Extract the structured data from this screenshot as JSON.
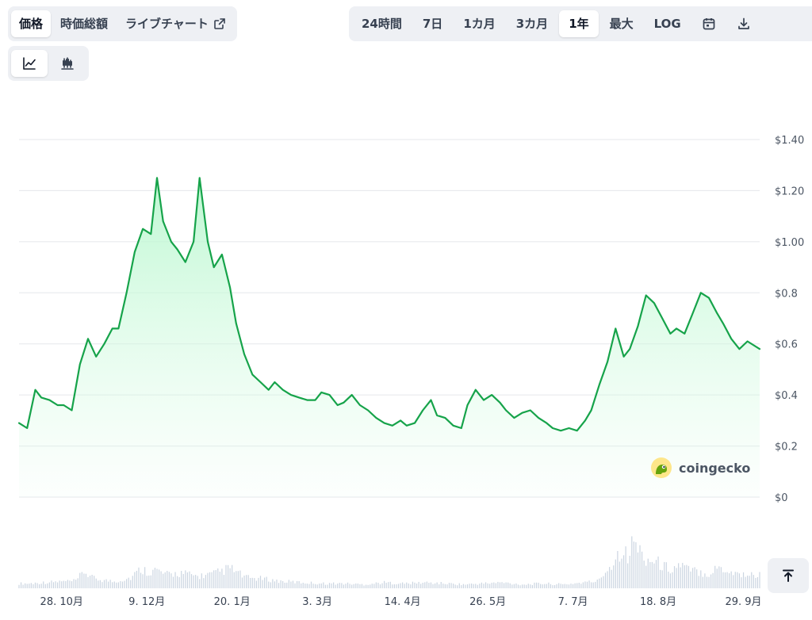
{
  "tabs_left": [
    {
      "label": "価格",
      "active": true
    },
    {
      "label": "時価総額",
      "active": false
    },
    {
      "label": "ライブチャート",
      "active": false,
      "icon": "external-link-icon"
    }
  ],
  "tabs_right": [
    {
      "label": "24時間",
      "active": false
    },
    {
      "label": "7日",
      "active": false
    },
    {
      "label": "1カ月",
      "active": false
    },
    {
      "label": "3カ月",
      "active": false
    },
    {
      "label": "1年",
      "active": true
    },
    {
      "label": "最大",
      "active": false
    },
    {
      "label": "LOG",
      "active": false
    }
  ],
  "toolbar_icons": [
    "calendar-icon",
    "download-icon"
  ],
  "view_toggle": [
    {
      "icon": "line-chart-icon",
      "active": true
    },
    {
      "icon": "candlestick-icon",
      "active": false
    }
  ],
  "watermark": {
    "text": "coingecko",
    "icon": "gecko-logo-icon"
  },
  "colors": {
    "line": "#16a34a",
    "fill_top": "#bbf7d0",
    "volume": "#cbd5e1",
    "grid": "#e5e7eb"
  },
  "chart_data": {
    "type": "area",
    "title": "",
    "xlabel": "",
    "ylabel": "",
    "y_ticks": [
      "$0",
      "$0.2",
      "$0.4",
      "$0.6",
      "$0.8",
      "$1.00",
      "$1.20",
      "$1.40"
    ],
    "y_tick_values": [
      0,
      0.2,
      0.4,
      0.6,
      0.8,
      1.0,
      1.2,
      1.4
    ],
    "ylim": [
      0,
      1.4
    ],
    "x_ticks": [
      "28. 10月",
      "9. 12月",
      "20. 1月",
      "3. 3月",
      "14. 4月",
      "26. 5月",
      "7. 7月",
      "18. 8月",
      "29. 9月"
    ],
    "x_tick_days": [
      21,
      63,
      105,
      147,
      189,
      231,
      273,
      315,
      357
    ],
    "xlim_days": [
      0,
      365
    ],
    "grid": true,
    "legend": "none",
    "series": [
      {
        "name": "",
        "x_days": [
          0,
          4,
          8,
          11,
          15,
          19,
          22,
          26,
          30,
          34,
          38,
          42,
          46,
          49,
          53,
          57,
          61,
          65,
          68,
          71,
          75,
          78,
          82,
          86,
          89,
          93,
          96,
          100,
          104,
          107,
          111,
          115,
          119,
          123,
          126,
          130,
          134,
          138,
          142,
          146,
          149,
          153,
          157,
          160,
          164,
          168,
          172,
          176,
          180,
          184,
          188,
          191,
          195,
          199,
          203,
          206,
          210,
          214,
          218,
          221,
          225,
          229,
          233,
          237,
          240,
          244,
          248,
          252,
          256,
          260,
          263,
          267,
          271,
          275,
          279,
          282,
          286,
          290,
          294,
          298,
          301,
          305,
          309,
          313,
          317,
          321,
          324,
          328,
          332,
          336,
          340,
          344,
          347,
          351,
          355,
          359,
          365
        ],
        "values": [
          0.29,
          0.27,
          0.42,
          0.39,
          0.38,
          0.36,
          0.36,
          0.34,
          0.52,
          0.62,
          0.55,
          0.6,
          0.66,
          0.66,
          0.8,
          0.96,
          1.05,
          1.03,
          1.25,
          1.08,
          1.0,
          0.97,
          0.92,
          1.0,
          1.25,
          1.0,
          0.9,
          0.95,
          0.82,
          0.68,
          0.56,
          0.48,
          0.45,
          0.42,
          0.45,
          0.42,
          0.4,
          0.39,
          0.38,
          0.38,
          0.41,
          0.4,
          0.36,
          0.37,
          0.4,
          0.36,
          0.34,
          0.31,
          0.29,
          0.28,
          0.3,
          0.28,
          0.29,
          0.34,
          0.38,
          0.32,
          0.31,
          0.28,
          0.27,
          0.36,
          0.42,
          0.38,
          0.4,
          0.37,
          0.34,
          0.31,
          0.33,
          0.34,
          0.31,
          0.29,
          0.27,
          0.26,
          0.27,
          0.26,
          0.3,
          0.34,
          0.44,
          0.53,
          0.66,
          0.55,
          0.58,
          0.67,
          0.79,
          0.76,
          0.7,
          0.64,
          0.66,
          0.64,
          0.72,
          0.8,
          0.78,
          0.72,
          0.68,
          0.62,
          0.58,
          0.61,
          0.58
        ]
      }
    ],
    "volume_series": {
      "name": "",
      "x_days": [
        5,
        12,
        20,
        28,
        32,
        36,
        40,
        47,
        55,
        60,
        64,
        68,
        72,
        80,
        88,
        96,
        104,
        112,
        120,
        128,
        140,
        150,
        160,
        170,
        180,
        190,
        200,
        210,
        220,
        228,
        238,
        248,
        258,
        268,
        278,
        285,
        290,
        293,
        297,
        300,
        303,
        307,
        310,
        314,
        318,
        322,
        326,
        330,
        335,
        340,
        345,
        350,
        355,
        360
      ],
      "relative": [
        0.1,
        0.12,
        0.14,
        0.15,
        0.35,
        0.22,
        0.18,
        0.14,
        0.22,
        0.4,
        0.35,
        0.38,
        0.28,
        0.32,
        0.25,
        0.3,
        0.42,
        0.22,
        0.2,
        0.15,
        0.12,
        0.1,
        0.1,
        0.08,
        0.12,
        0.1,
        0.12,
        0.1,
        0.08,
        0.1,
        0.12,
        0.08,
        0.1,
        0.08,
        0.12,
        0.15,
        0.4,
        0.55,
        0.85,
        0.65,
        1.0,
        0.7,
        0.6,
        0.55,
        0.45,
        0.4,
        0.5,
        0.38,
        0.35,
        0.3,
        0.45,
        0.35,
        0.3,
        0.28
      ]
    }
  }
}
